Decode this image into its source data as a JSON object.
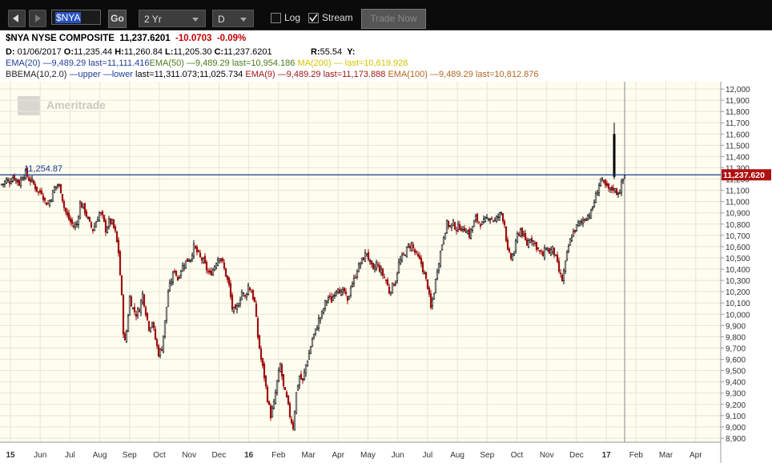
{
  "toolbar": {
    "symbol": "$NYA",
    "go_label": "Go",
    "timeframe": "2 Yr",
    "interval": "D",
    "log_label": "Log",
    "log_checked": false,
    "stream_label": "Stream",
    "stream_checked": true,
    "trade_now_label": "Trade Now"
  },
  "header": {
    "symbol": "$NYA",
    "name": "NYSE COMPOSITE",
    "last": "11,237.6201",
    "change": "-10.0703",
    "change_pct": "-0.09%",
    "date_label": "D:",
    "date": "01/06/2017",
    "open_label": "O:",
    "open": "11,235.44",
    "high_label": "H:",
    "high": "11,260.84",
    "low_label": "L:",
    "low": "11,205.30",
    "close_label": "C:",
    "close": "11,237.6201",
    "r_label": "R:",
    "r_value": "55.54",
    "y_label": "Y:",
    "ema20": "EMA(20) —9,489.29 last=11,111.416",
    "ema50": "EMA(50) —9,489.29 last=10,954.186",
    "ma200": "MA(200) — last=10,619.928",
    "bbema_name": "BBEMA(10,2.0)",
    "bbema_upper": "—upper",
    "bbema_lower": "—lower",
    "bbema_last": "last=11,311.073;11,025.734",
    "ema9": "EMA(9) —9,489.29 last=11,173.888",
    "ema100": "EMA(100) —9,489.29 last=10,812.876"
  },
  "colors": {
    "up": "#000000",
    "down": "#a01010",
    "background": "#fdfdf0",
    "grid": "#e6e6d8",
    "price_line": "#1a3a8c",
    "last_price_tag": "#b01010"
  },
  "watermark": "Ameritrade",
  "chart_data": {
    "type": "candlestick",
    "ylim": [
      8850,
      12050
    ],
    "yticks": [
      "12,000",
      "11,900",
      "11,800",
      "11,700",
      "11,600",
      "11,500",
      "11,400",
      "11,300",
      "11,200",
      "11,100",
      "11,000",
      "10,900",
      "10,800",
      "10,700",
      "10,600",
      "10,500",
      "10,400",
      "10,300",
      "10,200",
      "10,100",
      "10,000",
      "9,900",
      "9,800",
      "9,700",
      "9,600",
      "9,500",
      "9,400",
      "9,300",
      "9,200",
      "9,100",
      "9,000",
      "8,900"
    ],
    "xticks": [
      "15",
      "Jun",
      "Jul",
      "Aug",
      "Sep",
      "Oct",
      "Nov",
      "Dec",
      "16",
      "Feb",
      "Mar",
      "Apr",
      "May",
      "Jun",
      "Jul",
      "Aug",
      "Sep",
      "Oct",
      "Nov",
      "Dec",
      "17",
      "Feb",
      "Mar",
      "Apr"
    ],
    "reference_label": "11,254.87",
    "reference_value": 11254.87,
    "last_label": "11,237.620",
    "last_value": 11237.62,
    "path": [
      [
        0,
        11150
      ],
      [
        4,
        11160
      ],
      [
        8,
        11190
      ],
      [
        12,
        11180
      ],
      [
        16,
        11220
      ],
      [
        20,
        11200
      ],
      [
        24,
        11160
      ],
      [
        28,
        11230
      ],
      [
        32,
        11255
      ],
      [
        36,
        11200
      ],
      [
        40,
        11180
      ],
      [
        44,
        11130
      ],
      [
        48,
        11080
      ],
      [
        52,
        11090
      ],
      [
        56,
        11000
      ],
      [
        60,
        10980
      ],
      [
        64,
        11040
      ],
      [
        68,
        11120
      ],
      [
        72,
        11150
      ],
      [
        76,
        11100
      ],
      [
        80,
        10950
      ],
      [
        84,
        10870
      ],
      [
        88,
        10820
      ],
      [
        92,
        10780
      ],
      [
        96,
        10800
      ],
      [
        100,
        10980
      ],
      [
        104,
        10950
      ],
      [
        108,
        10880
      ],
      [
        112,
        10800
      ],
      [
        116,
        10750
      ],
      [
        120,
        10820
      ],
      [
        124,
        10900
      ],
      [
        128,
        10860
      ],
      [
        132,
        10750
      ],
      [
        136,
        10820
      ],
      [
        140,
        10810
      ],
      [
        144,
        10720
      ],
      [
        148,
        10550
      ],
      [
        152,
        10150
      ],
      [
        155,
        9700
      ],
      [
        158,
        9850
      ],
      [
        162,
        10150
      ],
      [
        166,
        10050
      ],
      [
        170,
        10000
      ],
      [
        174,
        10050
      ],
      [
        178,
        10180
      ],
      [
        182,
        10020
      ],
      [
        186,
        9880
      ],
      [
        190,
        9930
      ],
      [
        194,
        9780
      ],
      [
        198,
        9650
      ],
      [
        202,
        9700
      ],
      [
        206,
        9930
      ],
      [
        210,
        10200
      ],
      [
        214,
        10300
      ],
      [
        218,
        10400
      ],
      [
        222,
        10310
      ],
      [
        226,
        10400
      ],
      [
        230,
        10450
      ],
      [
        234,
        10480
      ],
      [
        238,
        10500
      ],
      [
        242,
        10600
      ],
      [
        246,
        10550
      ],
      [
        250,
        10500
      ],
      [
        254,
        10470
      ],
      [
        258,
        10400
      ],
      [
        262,
        10350
      ],
      [
        266,
        10400
      ],
      [
        270,
        10470
      ],
      [
        274,
        10520
      ],
      [
        278,
        10450
      ],
      [
        282,
        10350
      ],
      [
        286,
        10250
      ],
      [
        290,
        10050
      ],
      [
        294,
        10020
      ],
      [
        298,
        10100
      ],
      [
        302,
        10200
      ],
      [
        306,
        10150
      ],
      [
        310,
        10250
      ],
      [
        314,
        10200
      ],
      [
        318,
        10100
      ],
      [
        322,
        9800
      ],
      [
        326,
        9600
      ],
      [
        330,
        9450
      ],
      [
        334,
        9250
      ],
      [
        338,
        9100
      ],
      [
        342,
        9200
      ],
      [
        346,
        9400
      ],
      [
        350,
        9550
      ],
      [
        354,
        9350
      ],
      [
        358,
        9250
      ],
      [
        362,
        9100
      ],
      [
        366,
        9000
      ],
      [
        370,
        9300
      ],
      [
        374,
        9450
      ],
      [
        378,
        9400
      ],
      [
        382,
        9550
      ],
      [
        386,
        9650
      ],
      [
        390,
        9780
      ],
      [
        394,
        9850
      ],
      [
        398,
        9950
      ],
      [
        402,
        10000
      ],
      [
        406,
        10100
      ],
      [
        410,
        10150
      ],
      [
        414,
        10120
      ],
      [
        418,
        10200
      ],
      [
        422,
        10250
      ],
      [
        426,
        10180
      ],
      [
        430,
        10200
      ],
      [
        434,
        10100
      ],
      [
        438,
        10250
      ],
      [
        442,
        10300
      ],
      [
        446,
        10400
      ],
      [
        450,
        10450
      ],
      [
        454,
        10500
      ],
      [
        458,
        10550
      ],
      [
        462,
        10450
      ],
      [
        466,
        10380
      ],
      [
        470,
        10450
      ],
      [
        474,
        10400
      ],
      [
        478,
        10350
      ],
      [
        482,
        10300
      ],
      [
        486,
        10200
      ],
      [
        490,
        10250
      ],
      [
        494,
        10300
      ],
      [
        498,
        10450
      ],
      [
        502,
        10500
      ],
      [
        506,
        10550
      ],
      [
        510,
        10600
      ],
      [
        514,
        10620
      ],
      [
        518,
        10550
      ],
      [
        522,
        10500
      ],
      [
        526,
        10450
      ],
      [
        530,
        10350
      ],
      [
        534,
        10250
      ],
      [
        538,
        10050
      ],
      [
        542,
        10200
      ],
      [
        546,
        10400
      ],
      [
        550,
        10550
      ],
      [
        554,
        10700
      ],
      [
        558,
        10800
      ],
      [
        562,
        10780
      ],
      [
        566,
        10800
      ],
      [
        570,
        10760
      ],
      [
        574,
        10780
      ],
      [
        578,
        10750
      ],
      [
        582,
        10760
      ],
      [
        586,
        10700
      ],
      [
        590,
        10780
      ],
      [
        594,
        10850
      ],
      [
        598,
        10820
      ],
      [
        602,
        10800
      ],
      [
        606,
        10830
      ],
      [
        610,
        10870
      ],
      [
        614,
        10850
      ],
      [
        618,
        10830
      ],
      [
        622,
        10870
      ],
      [
        626,
        10900
      ],
      [
        630,
        10800
      ],
      [
        634,
        10550
      ],
      [
        638,
        10500
      ],
      [
        642,
        10550
      ],
      [
        646,
        10700
      ],
      [
        650,
        10750
      ],
      [
        654,
        10680
      ],
      [
        658,
        10620
      ],
      [
        662,
        10680
      ],
      [
        666,
        10650
      ],
      [
        670,
        10600
      ],
      [
        674,
        10550
      ],
      [
        678,
        10520
      ],
      [
        682,
        10600
      ],
      [
        686,
        10550
      ],
      [
        690,
        10580
      ],
      [
        694,
        10500
      ],
      [
        698,
        10380
      ],
      [
        702,
        10300
      ],
      [
        706,
        10450
      ],
      [
        710,
        10600
      ],
      [
        714,
        10700
      ],
      [
        718,
        10750
      ],
      [
        722,
        10800
      ],
      [
        726,
        10820
      ],
      [
        730,
        10850
      ],
      [
        734,
        10880
      ],
      [
        738,
        10900
      ],
      [
        742,
        11000
      ],
      [
        746,
        11100
      ],
      [
        750,
        11200
      ],
      [
        754,
        11150
      ],
      [
        758,
        11120
      ],
      [
        762,
        11100
      ],
      [
        766,
        11120
      ],
      [
        770,
        11080
      ],
      [
        774,
        11100
      ],
      [
        778,
        11200
      ],
      [
        780,
        11230
      ]
    ],
    "spike": {
      "x": 767,
      "from": 11200,
      "to": 11700
    }
  }
}
